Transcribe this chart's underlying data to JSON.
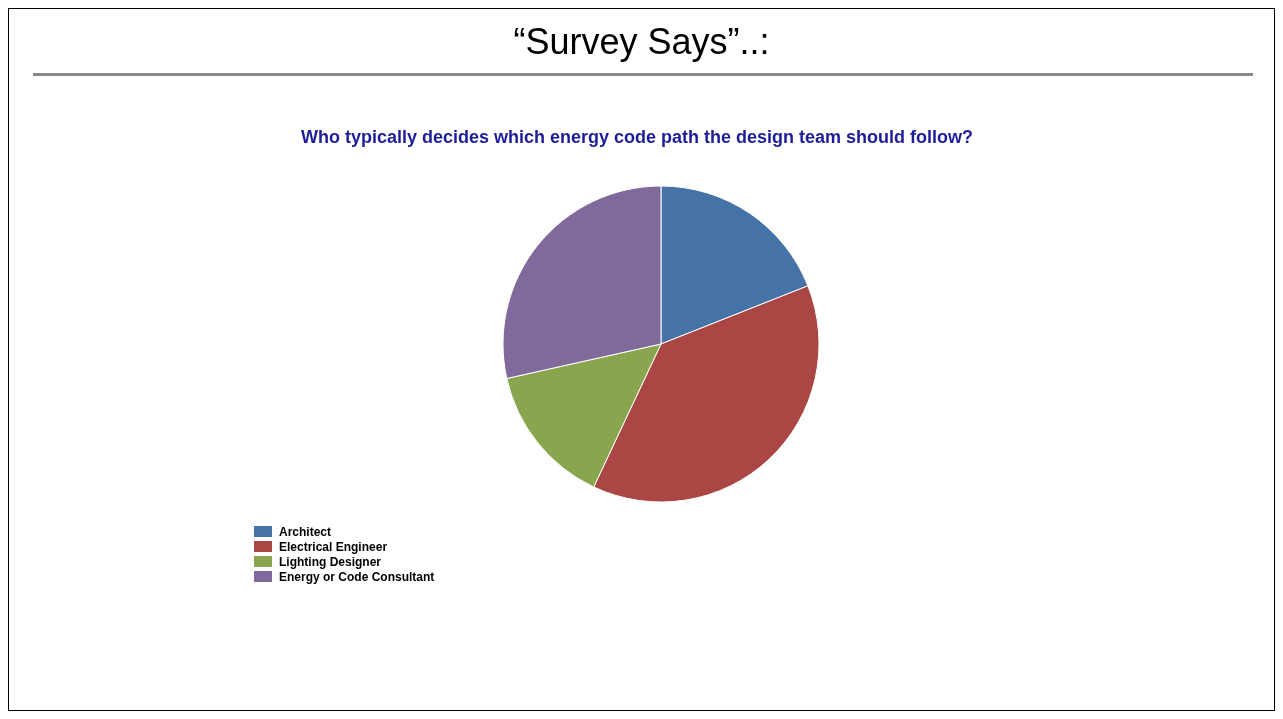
{
  "chart_data": {
    "type": "pie",
    "title": "“Survey Says”..:",
    "subtitle": "Who typically decides which energy code path the design team should follow?",
    "categories": [
      "Architect",
      "Electrical Engineer",
      "Lighting Designer",
      "Energy or Code Consultant"
    ],
    "values": [
      19,
      38,
      14.5,
      28.5
    ],
    "colors": [
      "#4572a7",
      "#aa4643",
      "#89a54e",
      "#80699b"
    ],
    "legend": "bottom left"
  }
}
